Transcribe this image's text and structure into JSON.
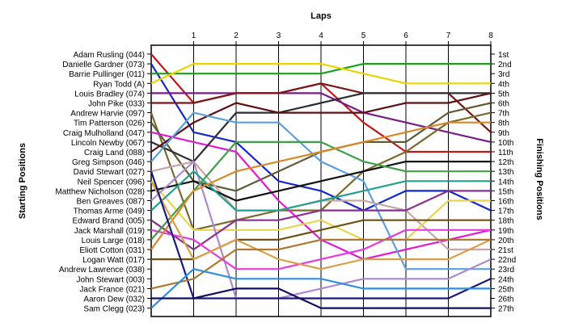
{
  "chart_data": {
    "type": "line",
    "title": "Laps",
    "ylabel_left": "Starting Positions",
    "ylabel_right": "Finishing Positions",
    "x_ticks": [
      "1",
      "2",
      "3",
      "4",
      "5",
      "6",
      "7",
      "8"
    ],
    "x_range": [
      0,
      8
    ],
    "y_range": [
      1,
      27
    ],
    "finish_labels": [
      "1st",
      "2nd",
      "3rd",
      "4th",
      "5th",
      "6th",
      "7th",
      "8th",
      "9th",
      "10th",
      "11th",
      "12th",
      "13th",
      "14th",
      "15th",
      "16th",
      "17th",
      "18th",
      "19th",
      "20th",
      "21st",
      "22nd",
      "23rd",
      "24th",
      "25th",
      "26th",
      "27th"
    ],
    "series": [
      {
        "name": "Adam Rusling (044)",
        "color": "#c1191b",
        "values": [
          1,
          6,
          5,
          5,
          4,
          8,
          11,
          11,
          11
        ]
      },
      {
        "name": "Danielle Gardner (073)",
        "color": "#1428c8",
        "values": [
          2,
          9,
          10,
          14,
          15,
          17,
          15,
          15,
          17
        ]
      },
      {
        "name": "Barrie Pullinger (011)",
        "color": "#1aa01a",
        "values": [
          3,
          3,
          3,
          3,
          3,
          2,
          2,
          2,
          2
        ]
      },
      {
        "name": "Ryan Todd (A)",
        "color": "#ebd400",
        "values": [
          4,
          2,
          2,
          2,
          2,
          3,
          4,
          4,
          4
        ]
      },
      {
        "name": "Louis Bradley (074)",
        "color": "#7a1c86",
        "values": [
          5,
          5,
          5,
          5,
          5,
          7,
          8,
          9,
          10
        ]
      },
      {
        "name": "John Pike (033)",
        "color": "#7a1616",
        "values": [
          6,
          6,
          5,
          5,
          4,
          5,
          5,
          5,
          9
        ]
      },
      {
        "name": "Andrew Harvie (097)",
        "color": "#7b6a2d",
        "values": [
          7,
          19,
          18,
          17,
          17,
          13,
          11,
          8,
          7
        ]
      },
      {
        "name": "Tim Patterson (026)",
        "color": "#5f5a38",
        "values": [
          8,
          14,
          15,
          13,
          11,
          10,
          10,
          7,
          6
        ]
      },
      {
        "name": "Craig Mulholland (047)",
        "color": "#e01cd0",
        "values": [
          9,
          10,
          11,
          16,
          20,
          22,
          21,
          20,
          19
        ]
      },
      {
        "name": "Lincoln Newby (067)",
        "color": "#2d2f36",
        "values": [
          10,
          12,
          7,
          7,
          6,
          5,
          5,
          5,
          5
        ]
      },
      {
        "name": "Craig Land (088)",
        "color": "#5e1111",
        "values": [
          11,
          8,
          6,
          7,
          7,
          7,
          6,
          6,
          5
        ]
      },
      {
        "name": "Greg Simpson (046)",
        "color": "#5aa0e0",
        "values": [
          12,
          7,
          8,
          8,
          12,
          14,
          23,
          23,
          23
        ]
      },
      {
        "name": "David Stewart (027)",
        "color": "#c6a7a7",
        "values": [
          13,
          12,
          17,
          17,
          16,
          16,
          17,
          21,
          21
        ]
      },
      {
        "name": "Neil Spencer (096)",
        "color": "#e8d44e",
        "values": [
          14,
          19,
          19,
          19,
          18,
          20,
          20,
          16,
          16
        ]
      },
      {
        "name": "Matthew Nicholson (028)",
        "color": "#111111",
        "values": [
          15,
          14,
          16,
          15,
          14,
          13,
          12,
          12,
          12
        ]
      },
      {
        "name": "Ben Greaves (087)",
        "color": "#ad8ad0",
        "values": [
          16,
          12,
          26,
          26,
          25,
          24,
          24,
          24,
          22
        ]
      },
      {
        "name": "Thomas Arme (049)",
        "color": "#23a090",
        "values": [
          17,
          13,
          17,
          17,
          16,
          15,
          14,
          14,
          14
        ]
      },
      {
        "name": "Edward Brand (005)",
        "color": "#8b2f92",
        "values": [
          18,
          21,
          18,
          18,
          17,
          17,
          17,
          15,
          15
        ]
      },
      {
        "name": "Jack Marshall (019)",
        "color": "#e83ae0",
        "values": [
          19,
          20,
          23,
          23,
          22,
          21,
          19,
          19,
          19
        ]
      },
      {
        "name": "Louis Large (018)",
        "color": "#3fa048",
        "values": [
          20,
          15,
          10,
          10,
          10,
          12,
          13,
          13,
          13
        ]
      },
      {
        "name": "Eliott Cotton (031)",
        "color": "#d88828",
        "values": [
          21,
          15,
          13,
          12,
          11,
          10,
          9,
          8,
          8
        ]
      },
      {
        "name": "Logan Watt (017)",
        "color": "#705010",
        "values": [
          22,
          22,
          20,
          20,
          19,
          18,
          18,
          18,
          18
        ]
      },
      {
        "name": "Andrew Lawrence (038)",
        "color": "#d8a048",
        "values": [
          14,
          22,
          20,
          22,
          23,
          22,
          22,
          22,
          20
        ]
      },
      {
        "name": "John Stewart (003)",
        "color": "#1a1a7c",
        "values": [
          13,
          26,
          26,
          26,
          26,
          26,
          26,
          26,
          24
        ]
      },
      {
        "name": "Jack France (021)",
        "color": "#b07830",
        "values": [
          25,
          24,
          21,
          21,
          20,
          20,
          20,
          20,
          20
        ]
      },
      {
        "name": "Aaron Dew (032)",
        "color": "#3090e0",
        "values": [
          27,
          23,
          24,
          24,
          24,
          25,
          25,
          25,
          25
        ]
      },
      {
        "name": "Sam Clegg (023)",
        "color": "#101060",
        "values": [
          26,
          26,
          25,
          25,
          27,
          27,
          27,
          27,
          27
        ]
      }
    ]
  }
}
